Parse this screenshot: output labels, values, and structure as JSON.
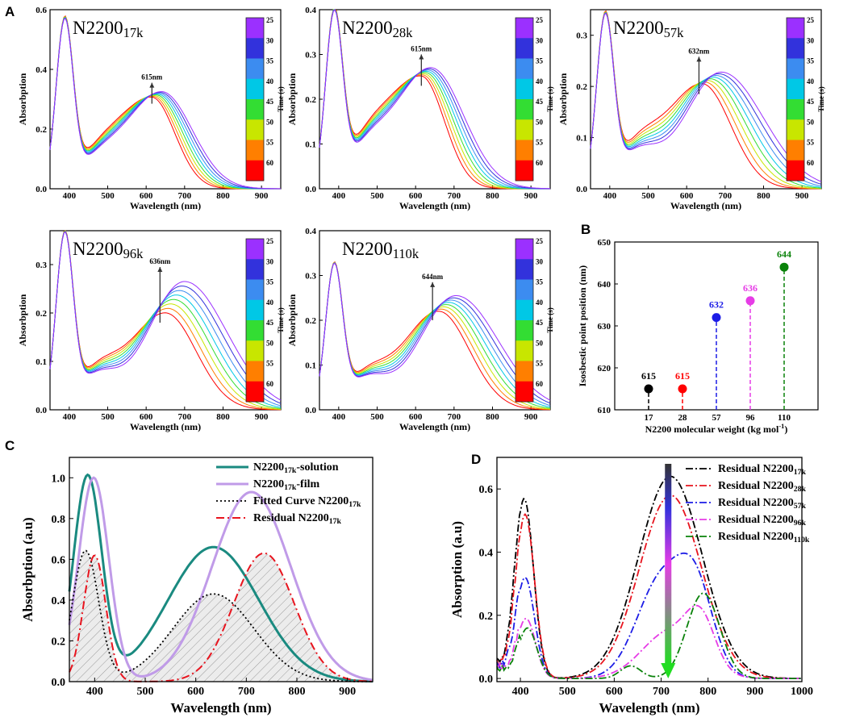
{
  "colors": {
    "time_scale": [
      "#ff0000",
      "#ff7f00",
      "#c8e600",
      "#33dd33",
      "#00c8e6",
      "#3c8cf0",
      "#3232dc",
      "#9b30ff"
    ],
    "solution": "#1a8a80",
    "film": "#c09be8",
    "fitted": "#000000",
    "residual": "#e8141e"
  },
  "panels": {
    "A": {
      "label": "A",
      "xlabel": "Wavelength (nm)",
      "ylabel": "Absorbption",
      "colorbar_title": "Time (s)",
      "colorbar_ticks": [
        "25",
        "30",
        "35",
        "40",
        "45",
        "50",
        "55",
        "60"
      ],
      "x_ticks": [
        "400",
        "500",
        "600",
        "700",
        "800",
        "900"
      ],
      "xlim": [
        350,
        950
      ],
      "samples": [
        {
          "base": "N2200",
          "sub": "17k",
          "iso_label": "615nm",
          "iso": 615,
          "ylim": [
            0,
            0.6
          ],
          "y_ticks": [
            "0.0",
            "0.2",
            "0.4",
            "0.6"
          ],
          "peak": 0.54,
          "hmin": 0.305,
          "hmax": 0.325,
          "lmin": 615,
          "lmax": 640,
          "smin": 60,
          "smax": 80
        },
        {
          "base": "N2200",
          "sub": "28k",
          "iso_label": "615nm",
          "iso": 615,
          "ylim": [
            0,
            0.4
          ],
          "y_ticks": [
            "0.0",
            "0.1",
            "0.2",
            "0.3",
            "0.4"
          ],
          "peak": 0.37,
          "hmin": 0.25,
          "hmax": 0.27,
          "lmin": 615,
          "lmax": 640,
          "smin": 60,
          "smax": 85
        },
        {
          "base": "N2200",
          "sub": "57k",
          "iso_label": "632nm",
          "iso": 632,
          "ylim": [
            0,
            0.35
          ],
          "y_ticks": [
            "0.0",
            "0.1",
            "0.2",
            "0.3"
          ],
          "peak": 0.32,
          "hmin": 0.205,
          "hmax": 0.228,
          "lmin": 640,
          "lmax": 690,
          "smin": 75,
          "smax": 110
        },
        {
          "base": "N2200",
          "sub": "96k",
          "iso_label": "636nm",
          "iso": 636,
          "ylim": [
            0,
            0.37
          ],
          "y_ticks": [
            "0.0",
            "0.1",
            "0.2",
            "0.3"
          ],
          "peak": 0.345,
          "hmin": 0.2,
          "hmax": 0.265,
          "lmin": 650,
          "lmax": 700,
          "smin": 80,
          "smax": 110
        },
        {
          "base": "N2200",
          "sub": "110k",
          "iso_label": "644nm",
          "iso": 644,
          "ylim": [
            0,
            0.4
          ],
          "y_ticks": [
            "0.0",
            "0.1",
            "0.2",
            "0.3",
            "0.4"
          ],
          "peak": 0.305,
          "hmin": 0.22,
          "hmax": 0.255,
          "lmin": 660,
          "lmax": 705,
          "smin": 80,
          "smax": 110
        }
      ]
    },
    "B": {
      "label": "B",
      "ylabel": "Isosbestic point position (nm)",
      "xlabel_main": "N2200 molecular weight (kg mol",
      "xlabel_sup": "-1",
      "xlabel_end": ")",
      "categories": [
        "17",
        "28",
        "57",
        "96",
        "110"
      ],
      "values": [
        615,
        615,
        632,
        636,
        644
      ],
      "value_labels": [
        "615",
        "615",
        "632",
        "636",
        "644"
      ],
      "point_colors": [
        "#000000",
        "#ff0000",
        "#1c1ce6",
        "#e63ce6",
        "#0a820a"
      ],
      "ylim": [
        610,
        650
      ],
      "y_ticks": [
        "610",
        "620",
        "630",
        "640",
        "650"
      ]
    },
    "C": {
      "label": "C",
      "xlabel": "Wavelength (nm)",
      "ylabel": "Absorbption (a.u)",
      "xlim": [
        350,
        950
      ],
      "ylim": [
        0,
        1.1
      ],
      "x_ticks": [
        "400",
        "500",
        "600",
        "700",
        "800",
        "900"
      ],
      "y_ticks": [
        "0.0",
        "0.2",
        "0.4",
        "0.6",
        "0.8",
        "1.0"
      ],
      "legend": [
        {
          "pre": "N2200",
          "sub": "17k",
          "post": "-solution"
        },
        {
          "pre": "N2200",
          "sub": "17k",
          "post": "-film"
        },
        {
          "pre": "Fitted Curve N2200",
          "sub": "17k",
          "post": ""
        },
        {
          "pre": "Residual N2200",
          "sub": "17k",
          "post": ""
        }
      ],
      "series": [
        {
          "name": "solution",
          "g": [
            [
              1.0,
              386,
              28
            ],
            [
              0.66,
              635,
              90
            ]
          ],
          "tail": 55
        },
        {
          "name": "film",
          "g": [
            [
              1.0,
              398,
              30
            ],
            [
              0.93,
              710,
              78
            ]
          ],
          "tail": 35
        },
        {
          "name": "fitted",
          "g": [
            [
              0.64,
              382,
              26
            ],
            [
              0.43,
              635,
              80
            ]
          ],
          "tail": 0
        },
        {
          "name": "residual",
          "g": [
            [
              0.62,
              400,
              22
            ],
            [
              0.63,
              735,
              60
            ]
          ],
          "tail": 0
        }
      ]
    },
    "D": {
      "label": "D",
      "xlabel": "Wavelength (nm)",
      "ylabel": "Absorption (a.u)",
      "xlim": [
        350,
        1000
      ],
      "ylim": [
        -0.01,
        0.7
      ],
      "x_ticks": [
        "400",
        "500",
        "600",
        "700",
        "800",
        "900",
        "1000"
      ],
      "y_ticks": [
        "0.0",
        "0.2",
        "0.4",
        "0.6"
      ],
      "arrow_x": 715,
      "legend": [
        {
          "pre": "Residual N2200",
          "sub": "17k"
        },
        {
          "pre": "Residual N2200",
          "sub": "28k"
        },
        {
          "pre": "Residual N2200",
          "sub": "57k"
        },
        {
          "pre": "Residual N2200",
          "sub": "96k"
        },
        {
          "pre": "Residual N2200",
          "sub": "110k"
        }
      ],
      "series": [
        {
          "name": "17k",
          "color": "#000000",
          "g": [
            [
              0.57,
              408,
              20
            ],
            [
              0.64,
              720,
              68
            ]
          ]
        },
        {
          "name": "28k",
          "color": "#e8141e",
          "g": [
            [
              0.52,
              410,
              20
            ],
            [
              0.58,
              720,
              66
            ]
          ]
        },
        {
          "name": "57k",
          "color": "#1c1ce6",
          "g": [
            [
              0.32,
              410,
              20
            ],
            [
              0.31,
              700,
              52
            ],
            [
              0.25,
              775,
              38
            ]
          ]
        },
        {
          "name": "96k",
          "color": "#e63ce6",
          "g": [
            [
              0.19,
              412,
              20
            ],
            [
              0.15,
              720,
              60
            ],
            [
              0.14,
              785,
              30
            ]
          ]
        },
        {
          "name": "110k",
          "color": "#0a820a",
          "g": [
            [
              0.16,
              415,
              20
            ],
            [
              0.04,
              635,
              22
            ],
            [
              0.27,
              790,
              35
            ]
          ]
        }
      ]
    }
  }
}
